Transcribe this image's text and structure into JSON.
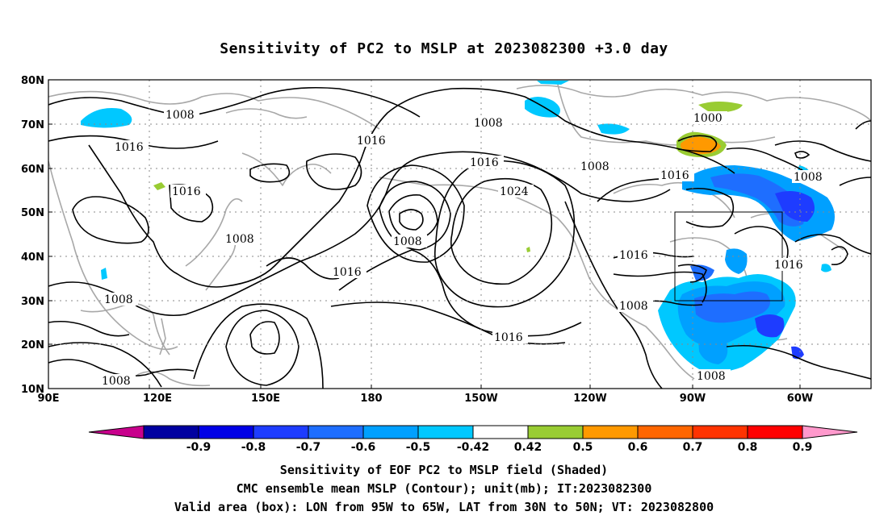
{
  "title": "Sensitivity of PC2 to MSLP at 2023082300 +3.0 day",
  "map": {
    "lon_labels": [
      "90E",
      "120E",
      "150E",
      "180",
      "150W",
      "120W",
      "90W",
      "60W"
    ],
    "lat_labels": [
      "80N",
      "70N",
      "60N",
      "50N",
      "40N",
      "30N",
      "20N",
      "10N"
    ],
    "valid_box": {
      "lon_range": [
        "95W",
        "65W"
      ],
      "lat_range": [
        "30N",
        "50N"
      ]
    },
    "contour_labels": [
      "1008",
      "1016",
      "1016",
      "1008",
      "1008",
      "1016",
      "1016",
      "1024",
      "1008",
      "1016",
      "1008",
      "1000",
      "1008",
      "1016",
      "1016",
      "1008",
      "1016",
      "1008",
      "1008",
      "1008",
      "1016"
    ]
  },
  "colorbar": {
    "labels": [
      "-0.9",
      "-0.8",
      "-0.7",
      "-0.6",
      "-0.5",
      "-0.42",
      "0.42",
      "0.5",
      "0.6",
      "0.7",
      "0.8",
      "0.9"
    ],
    "colors": [
      "#c8008c",
      "#0000a0",
      "#0000e6",
      "#1e3cff",
      "#1e6eff",
      "#00a0ff",
      "#00c8ff",
      "#ffffff",
      "#99cc33",
      "#ff9900",
      "#ff6600",
      "#ff3300",
      "#ff0000",
      "#ff99cc"
    ]
  },
  "captions": [
    "Sensitivity of EOF PC2 to MSLP field (Shaded)",
    "CMC ensemble mean MSLP (Contour); unit(mb); IT:2023082300",
    "Valid area (box): LON from 95W to 65W, LAT from 30N to 50N; VT: 2023082800"
  ]
}
